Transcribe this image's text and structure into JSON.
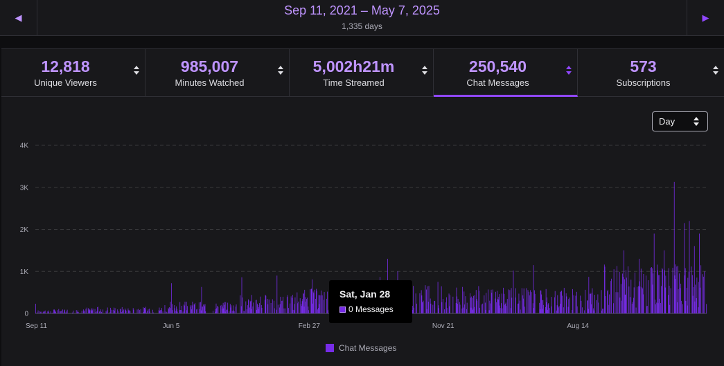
{
  "date_nav": {
    "range": "Sep 11, 2021 – May 7, 2025",
    "days": "1,335 days",
    "prev_icon": "chevron-left-icon",
    "next_icon": "chevron-right-icon"
  },
  "tabs": [
    {
      "value": "12,818",
      "label": "Unique Viewers",
      "active": false
    },
    {
      "value": "985,007",
      "label": "Minutes Watched",
      "active": false
    },
    {
      "value": "5,002h21m",
      "label": "Time Streamed",
      "active": false
    },
    {
      "value": "250,540",
      "label": "Chat Messages",
      "active": true
    },
    {
      "value": "573",
      "label": "Subscriptions",
      "active": false
    }
  ],
  "granularity": {
    "selected": "Day"
  },
  "colors": {
    "accent": "#bf94ff",
    "bar": "#772ce8",
    "background": "#18181b"
  },
  "tooltip": {
    "title": "Sat, Jan 28",
    "row": "0 Messages"
  },
  "chart_data": {
    "type": "bar",
    "series": [
      {
        "name": "Chat Messages"
      }
    ],
    "x_ticks": [
      "Sep 11",
      "Jun 5",
      "Feb 27",
      "Nov 21",
      "Aug 14"
    ],
    "y_ticks": [
      "0",
      "1K",
      "2K",
      "3K",
      "4K"
    ],
    "ylim": [
      0,
      4000
    ],
    "grid": true,
    "legend": "bottom",
    "num_days": 1335,
    "spikes": [
      {
        "day": 0,
        "value": 230
      },
      {
        "day": 270,
        "value": 720
      },
      {
        "day": 330,
        "value": 630
      },
      {
        "day": 410,
        "value": 860
      },
      {
        "day": 480,
        "value": 900
      },
      {
        "day": 550,
        "value": 810
      },
      {
        "day": 620,
        "value": 570
      },
      {
        "day": 685,
        "value": 870
      },
      {
        "day": 700,
        "value": 1300
      },
      {
        "day": 720,
        "value": 1000
      },
      {
        "day": 800,
        "value": 750
      },
      {
        "day": 950,
        "value": 1020
      },
      {
        "day": 990,
        "value": 1150
      },
      {
        "day": 1100,
        "value": 870
      },
      {
        "day": 1150,
        "value": 1050
      },
      {
        "day": 1170,
        "value": 1500
      },
      {
        "day": 1200,
        "value": 1300
      },
      {
        "day": 1230,
        "value": 1900
      },
      {
        "day": 1250,
        "value": 1500
      },
      {
        "day": 1270,
        "value": 3130
      },
      {
        "day": 1290,
        "value": 2150
      },
      {
        "day": 1300,
        "value": 2200
      },
      {
        "day": 1310,
        "value": 1600
      },
      {
        "day": 1320,
        "value": 1900
      },
      {
        "day": 1330,
        "value": 1000
      }
    ],
    "segments": [
      {
        "from": 0,
        "to": 100,
        "typical": 60
      },
      {
        "from": 100,
        "to": 250,
        "typical": 90
      },
      {
        "from": 250,
        "to": 400,
        "typical": 160
      },
      {
        "from": 400,
        "to": 520,
        "typical": 250
      },
      {
        "from": 520,
        "to": 680,
        "typical": 330
      },
      {
        "from": 680,
        "to": 900,
        "typical": 380
      },
      {
        "from": 900,
        "to": 1130,
        "typical": 340
      },
      {
        "from": 1130,
        "to": 1335,
        "typical": 650
      }
    ]
  }
}
